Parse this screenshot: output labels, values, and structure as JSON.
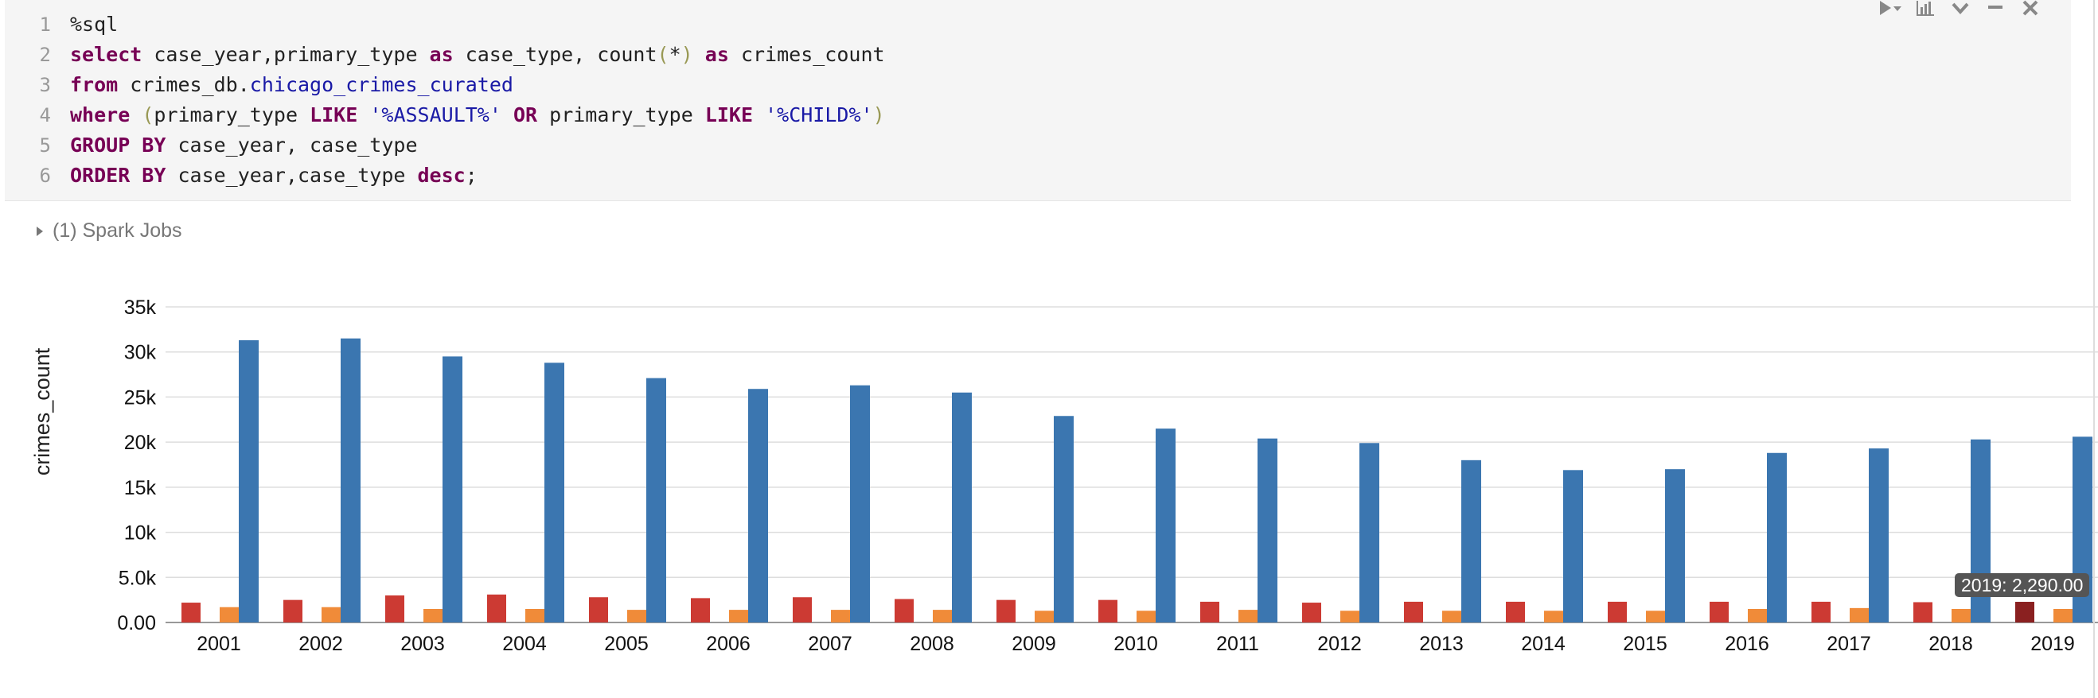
{
  "editor": {
    "line_numbers": [
      "1",
      "2",
      "3",
      "4",
      "5",
      "6"
    ]
  },
  "toolbar": {
    "icons": [
      "run-icon",
      "chart-icon",
      "chevron-down-icon",
      "minimize-icon",
      "close-icon"
    ]
  },
  "spark_jobs": {
    "label": "(1) Spark Jobs"
  },
  "tooltip": {
    "text": "2019: 2,290.00"
  },
  "colors": {
    "red": "#cc3a33",
    "orange": "#f08b39",
    "blue": "#3b76b0",
    "highlight": "#8a2020"
  },
  "chart_data": {
    "type": "bar",
    "categories": [
      "2001",
      "2002",
      "2003",
      "2004",
      "2005",
      "2006",
      "2007",
      "2008",
      "2009",
      "2010",
      "2011",
      "2012",
      "2013",
      "2014",
      "2015",
      "2016",
      "2017",
      "2018",
      "2019"
    ],
    "series": [
      {
        "values": [
          2200,
          2500,
          3000,
          3100,
          2800,
          2700,
          2800,
          2600,
          2500,
          2500,
          2300,
          2200,
          2300,
          2300,
          2300,
          2300,
          2300,
          2250,
          2290
        ]
      },
      {
        "values": [
          1700,
          1700,
          1500,
          1500,
          1400,
          1400,
          1400,
          1400,
          1300,
          1300,
          1400,
          1300,
          1300,
          1300,
          1300,
          1500,
          1600,
          1500,
          1500
        ]
      },
      {
        "values": [
          31300,
          31500,
          29500,
          28800,
          27100,
          25900,
          26300,
          25500,
          22900,
          21500,
          20400,
          19900,
          18000,
          16900,
          17000,
          18800,
          19300,
          20300,
          20600
        ]
      }
    ],
    "ylabel": "crimes_count",
    "ylim": [
      0,
      35000
    ],
    "yticks": [
      0,
      5000,
      10000,
      15000,
      20000,
      25000,
      30000,
      35000
    ],
    "ytick_labels": [
      "0.00",
      "5.0k",
      "10k",
      "15k",
      "20k",
      "25k",
      "30k",
      "35k"
    ],
    "grid": true,
    "highlighted": {
      "category": "2019",
      "series_index": 0
    }
  }
}
